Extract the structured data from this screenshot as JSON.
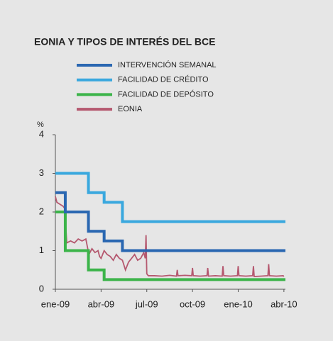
{
  "chart_data": {
    "type": "line",
    "title": "EONIA Y TIPOS DE INTERÉS DEL BCE",
    "ylabel": "%",
    "xlim": [
      0,
      15.1
    ],
    "ylim": [
      0,
      4
    ],
    "xticks": [
      {
        "value": 0,
        "label": "ene-09"
      },
      {
        "value": 3,
        "label": "abr-09"
      },
      {
        "value": 6,
        "label": "jul-09"
      },
      {
        "value": 9,
        "label": "oct-09"
      },
      {
        "value": 12,
        "label": "ene-10"
      },
      {
        "value": 15,
        "label": "abr-10"
      }
    ],
    "yticks": [
      0,
      1,
      2,
      3,
      4
    ],
    "grid": false,
    "series": [
      {
        "name": "INTERVENCIÓN SEMANAL",
        "color": "#2a67b1",
        "step": true,
        "x": [
          0,
          0.65,
          2.17,
          3.2,
          4.4,
          15.1
        ],
        "values": [
          2.5,
          2,
          1.5,
          1.25,
          1,
          1
        ]
      },
      {
        "name": "FACILIDAD DE CRÉDITO",
        "color": "#3aa8de",
        "step": true,
        "x": [
          0,
          2.17,
          3.2,
          4.4,
          15.1
        ],
        "values": [
          3,
          2.5,
          2.25,
          1.75,
          1.75
        ]
      },
      {
        "name": "FACILIDAD DE DEPÓSITO",
        "color": "#3cb44a",
        "step": true,
        "x": [
          0,
          0.65,
          2.17,
          3.2,
          15.1
        ],
        "values": [
          2,
          1,
          0.5,
          0.25,
          0.25
        ]
      },
      {
        "name": "EONIA",
        "color": "#b5586f",
        "step": false,
        "x": [
          0,
          0.1,
          0.3,
          0.5,
          0.6,
          0.7,
          0.75,
          1,
          1.25,
          1.5,
          1.75,
          2,
          2.1,
          2.2,
          2.4,
          2.6,
          2.8,
          2.9,
          3,
          3.2,
          3.4,
          3.6,
          3.8,
          4,
          4.2,
          4.4,
          4.6,
          4.8,
          5,
          5.2,
          5.4,
          5.6,
          5.8,
          5.9,
          5.95,
          6.0,
          6.1,
          6.5,
          7,
          7.5,
          7.95,
          8,
          8.05,
          8.5,
          8.95,
          9,
          9.05,
          9.5,
          9.95,
          10,
          10.05,
          10.5,
          10.95,
          11,
          11.05,
          11.5,
          11.95,
          12,
          12.05,
          12.5,
          12.95,
          13,
          13.05,
          13.5,
          13.95,
          14,
          14.05,
          14.5,
          14.95,
          15
        ],
        "values": [
          2.4,
          2.25,
          2.2,
          2.15,
          2.1,
          1.5,
          1.2,
          1.25,
          1.2,
          1.3,
          1.25,
          1.3,
          1.1,
          0.9,
          1.05,
          0.95,
          1.0,
          0.85,
          0.8,
          1.0,
          0.9,
          0.85,
          0.75,
          0.9,
          0.8,
          0.75,
          0.5,
          0.7,
          0.8,
          0.9,
          0.75,
          0.8,
          0.95,
          0.8,
          1.4,
          0.4,
          0.35,
          0.35,
          0.34,
          0.36,
          0.34,
          0.5,
          0.35,
          0.36,
          0.35,
          0.55,
          0.35,
          0.34,
          0.35,
          0.55,
          0.34,
          0.35,
          0.34,
          0.6,
          0.35,
          0.34,
          0.35,
          0.6,
          0.35,
          0.34,
          0.35,
          0.6,
          0.33,
          0.34,
          0.35,
          0.65,
          0.35,
          0.34,
          0.35,
          0.33
        ]
      }
    ]
  }
}
